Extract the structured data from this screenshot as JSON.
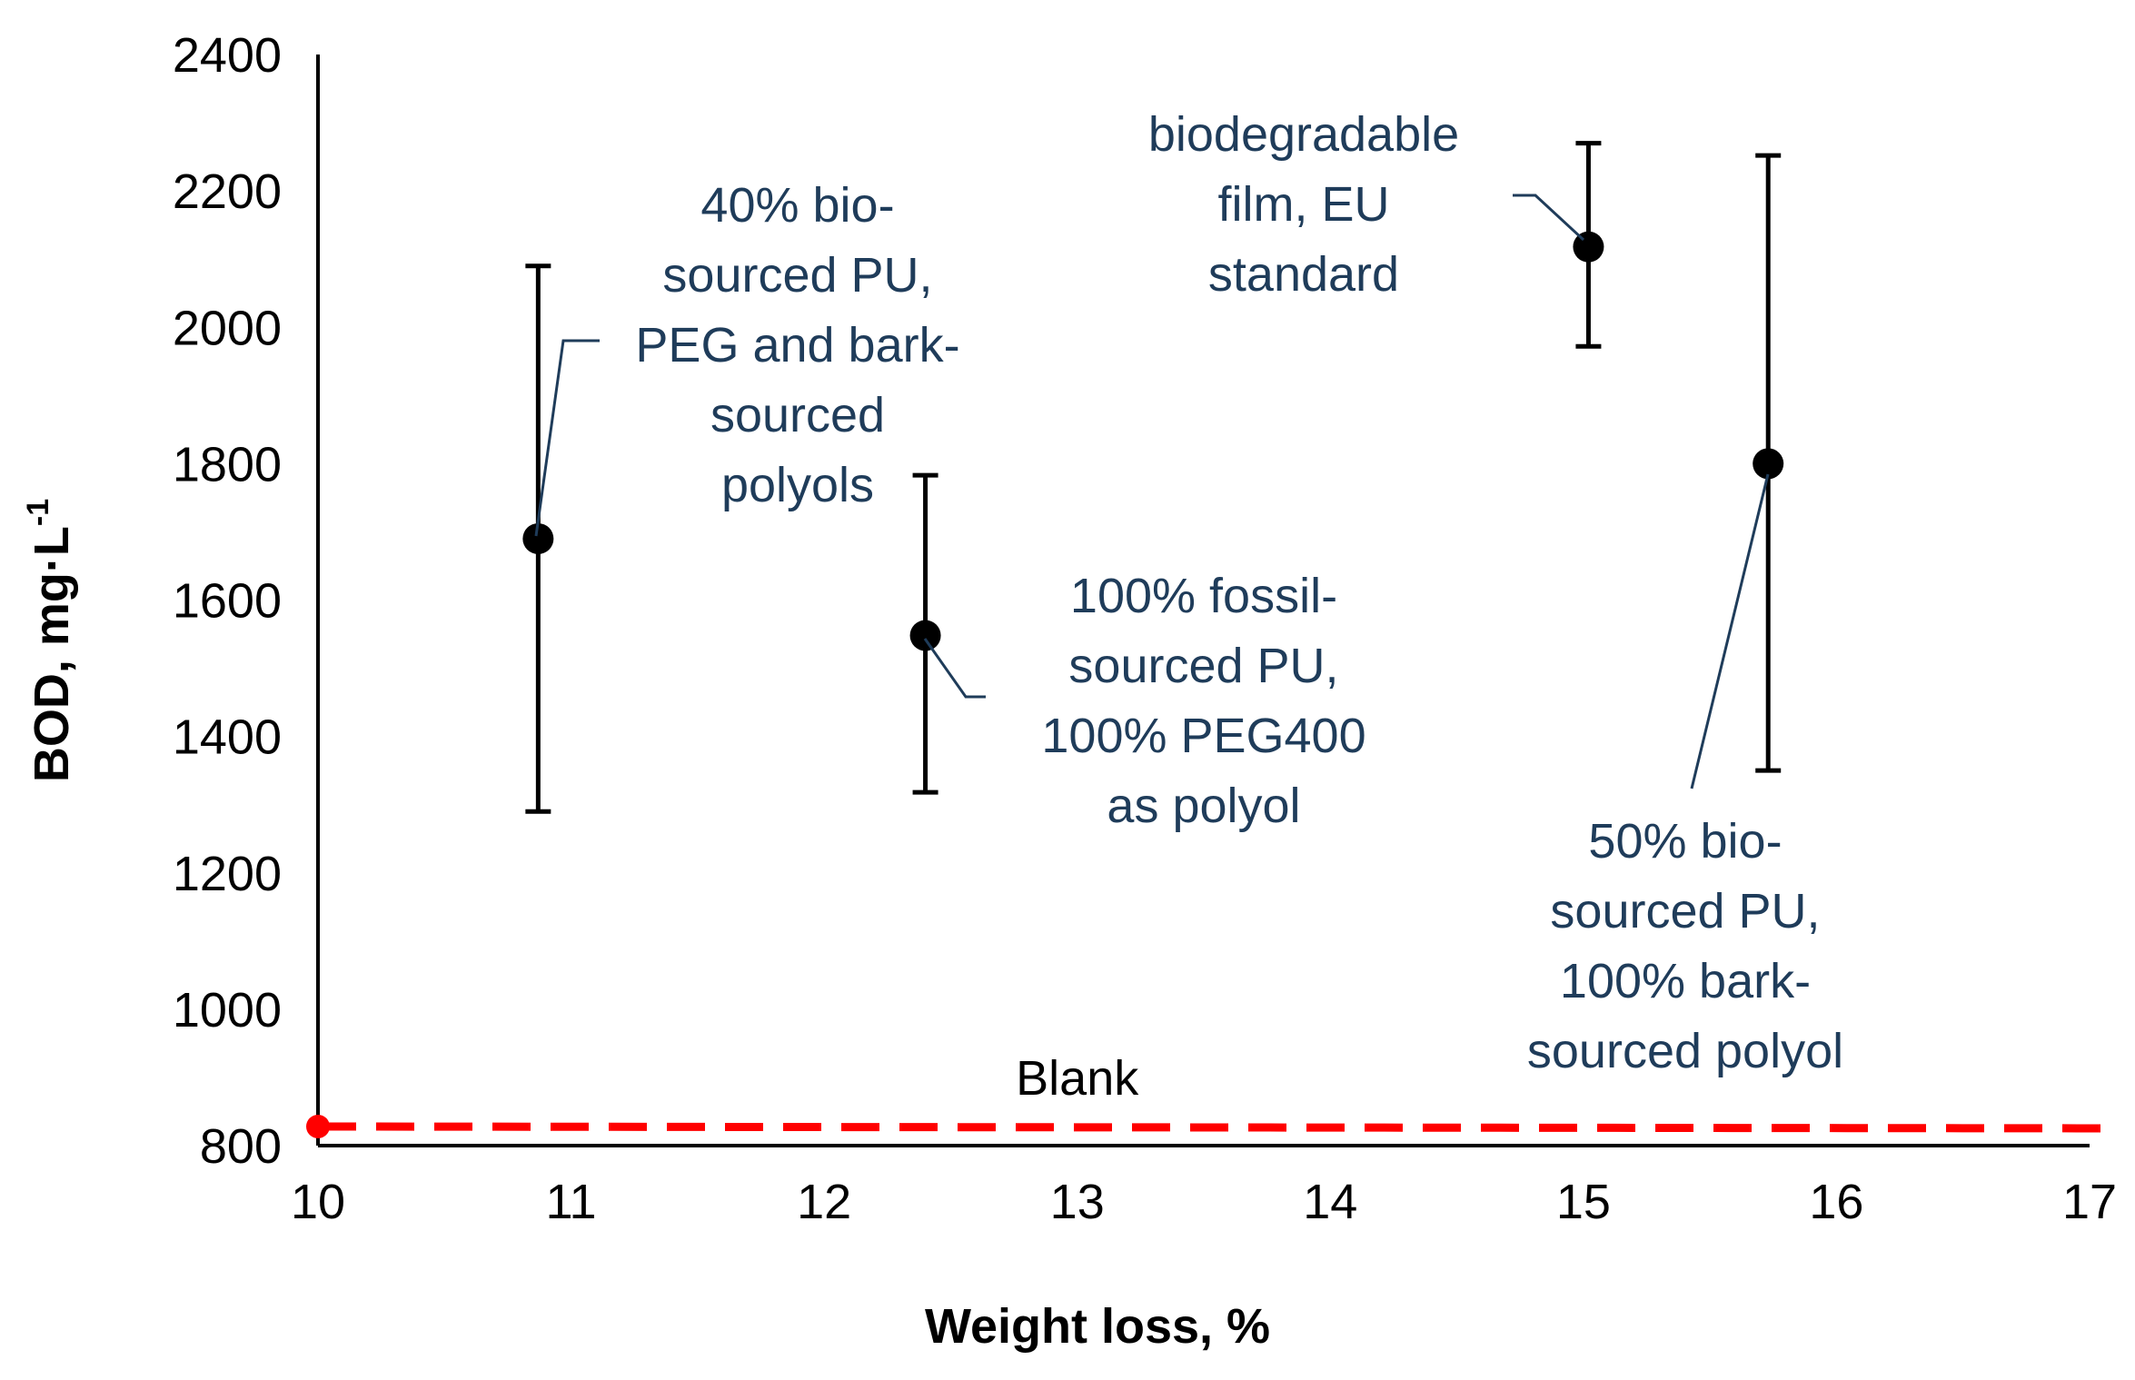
{
  "chart_data": {
    "type": "scatter",
    "xlabel": "Weight loss, %",
    "ylabel_main": "BOD, mg·L",
    "ylabel_sup": "-1",
    "xlim": [
      10,
      17
    ],
    "ylim": [
      800,
      2400
    ],
    "x_ticks": [
      10,
      11,
      12,
      13,
      14,
      15,
      16,
      17
    ],
    "y_ticks": [
      800,
      1000,
      1200,
      1400,
      1600,
      1800,
      2000,
      2200,
      2400
    ],
    "grid": false,
    "points": [
      {
        "x": 10.87,
        "y": 1690,
        "err_low": 1290,
        "err_high": 2090,
        "label_lines": [
          "40% bio-",
          "sourced PU,",
          "PEG and bark-",
          "sourced",
          "polyols"
        ]
      },
      {
        "x": 12.4,
        "y": 1548,
        "err_low": 1318,
        "err_high": 1783,
        "label_lines": [
          "100% fossil-",
          "sourced PU,",
          "100% PEG400",
          "as polyol"
        ]
      },
      {
        "x": 15.02,
        "y": 2118,
        "err_low": 1972,
        "err_high": 2270,
        "label_lines": [
          "biodegradable",
          "film,  EU",
          "standard"
        ]
      },
      {
        "x": 15.73,
        "y": 1800,
        "err_low": 1350,
        "err_high": 2252,
        "label_lines": [
          "50% bio-",
          "sourced PU,",
          "100% bark-",
          "sourced polyol"
        ]
      }
    ],
    "blank": {
      "label": "Blank",
      "y": 828,
      "color": "#ff0000"
    },
    "marker_color": "#000000",
    "annotation_color": "#1f3c5a"
  }
}
